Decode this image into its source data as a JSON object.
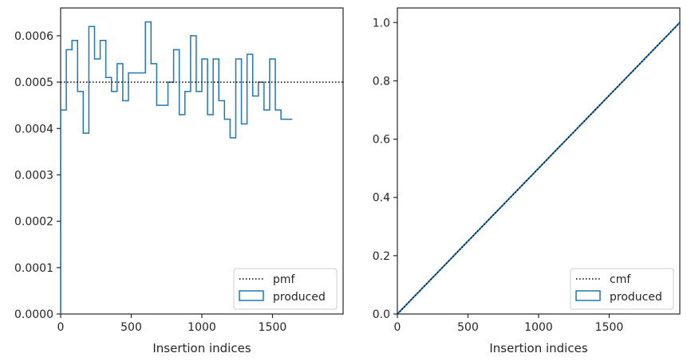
{
  "chart_data": [
    {
      "type": "histogram",
      "xlabel": "Insertion indices",
      "ylabel": "",
      "xlim": [
        0,
        2000
      ],
      "ylim": [
        0,
        0.00066
      ],
      "xticks": [
        0,
        500,
        1000,
        1500
      ],
      "xtick_labels": [
        "0",
        "500",
        "1000",
        "1500"
      ],
      "yticks": [
        0,
        0.0001,
        0.0002,
        0.0003,
        0.0004,
        0.0005,
        0.0006
      ],
      "ytick_labels": [
        "0.0000",
        "0.0001",
        "0.0002",
        "0.0003",
        "0.0004",
        "0.0005",
        "0.0006"
      ],
      "bin_width": 40,
      "series": [
        {
          "name": "produced",
          "style": "step",
          "color": "#1f77b4",
          "bin_edges_start": 0,
          "values": [
            0.00044,
            0.00057,
            0.00059,
            0.00048,
            0.00039,
            0.00062,
            0.00055,
            0.00059,
            0.00051,
            0.00048,
            0.00054,
            0.00046,
            0.00052,
            0.00052,
            0.00052,
            0.00063,
            0.00054,
            0.00045,
            0.00045,
            0.0005,
            0.00057,
            0.00043,
            0.00048,
            0.0006,
            0.00048,
            0.00055,
            0.00043,
            0.00055,
            0.00046,
            0.00042,
            0.00038,
            0.00055,
            0.00041,
            0.00056,
            0.00047,
            0.0005,
            0.00044,
            0.00055,
            0.00044,
            0.00042,
            0.00042
          ]
        },
        {
          "name": "pmf",
          "style": "dotted",
          "color": "#000000",
          "x": [
            0,
            2000
          ],
          "y": [
            0.0005,
            0.0005
          ]
        }
      ],
      "legend": {
        "position": "lower-right",
        "entries": [
          "pmf",
          "produced"
        ]
      }
    },
    {
      "type": "line",
      "xlabel": "Insertion indices",
      "ylabel": "",
      "xlim": [
        0,
        2000
      ],
      "ylim": [
        0,
        1.05
      ],
      "xticks": [
        0,
        500,
        1000,
        1500
      ],
      "xtick_labels": [
        "0",
        "500",
        "1000",
        "1500"
      ],
      "yticks": [
        0,
        0.2,
        0.4,
        0.6,
        0.8,
        1.0
      ],
      "ytick_labels": [
        "0.0",
        "0.2",
        "0.4",
        "0.6",
        "0.8",
        "1.0"
      ],
      "series": [
        {
          "name": "produced",
          "style": "solid",
          "color": "#1f77b4",
          "x": [
            0,
            100,
            200,
            300,
            400,
            500,
            600,
            700,
            800,
            900,
            1000,
            1100,
            1200,
            1300,
            1400,
            1500,
            1600,
            1700,
            1800,
            1900,
            2000
          ],
          "y": [
            0,
            0.05,
            0.1,
            0.15,
            0.2,
            0.25,
            0.3,
            0.35,
            0.4,
            0.45,
            0.5,
            0.55,
            0.6,
            0.65,
            0.7,
            0.75,
            0.8,
            0.85,
            0.9,
            0.95,
            1.0
          ]
        },
        {
          "name": "cmf",
          "style": "dotted",
          "color": "#000000",
          "x": [
            0,
            2000
          ],
          "y": [
            0,
            1.0
          ]
        }
      ],
      "legend": {
        "position": "lower-right",
        "entries": [
          "cmf",
          "produced"
        ]
      }
    }
  ]
}
